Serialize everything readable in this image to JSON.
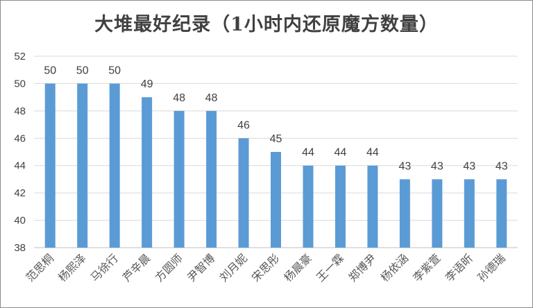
{
  "chart_data": {
    "type": "bar",
    "title": "大堆最好纪录（1小时内还原魔方数量）",
    "categories": [
      "范思桐",
      "杨熙泽",
      "马徐行",
      "芦辛晨",
      "方圆师",
      "尹智博",
      "刘月妮",
      "宋思彤",
      "杨晨豪",
      "王一霖",
      "郑博尹",
      "杨依涵",
      "李紫萱",
      "李语昕",
      "孙德瑞"
    ],
    "values": [
      50,
      50,
      50,
      49,
      48,
      48,
      46,
      45,
      44,
      44,
      44,
      43,
      43,
      43,
      43
    ],
    "ylim": [
      38,
      52
    ],
    "yticks": [
      38,
      40,
      42,
      44,
      46,
      48,
      50,
      52
    ],
    "grid": true,
    "legend": "none",
    "bar_color": "#5b9bd5",
    "grid_color": "#d9d9d9"
  }
}
